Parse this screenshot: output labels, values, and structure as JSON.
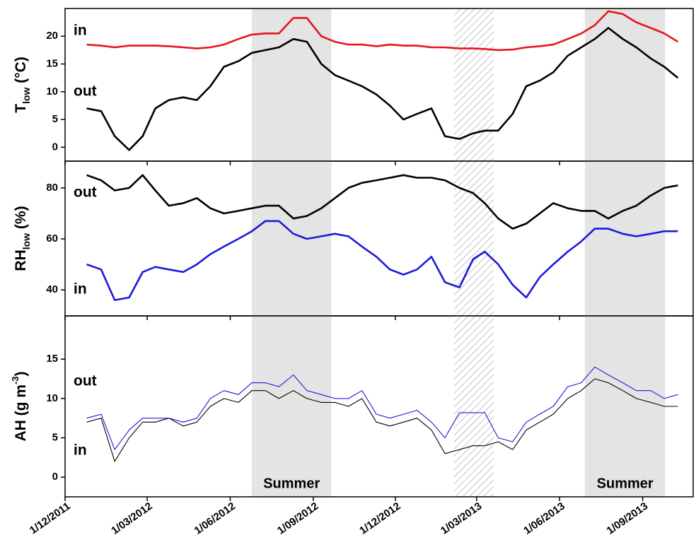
{
  "chart_data": [
    {
      "type": "line",
      "ylabel": [
        {
          "text": "T"
        },
        {
          "text": "low",
          "shift": "sub"
        },
        {
          "text": " (°C)"
        }
      ],
      "x": [
        "25/12/2011",
        "10/01/2012",
        "25/01/2012",
        "10/02/2012",
        "25/02/2012",
        "10/03/2012",
        "25/03/2012",
        "10/04/2012",
        "25/04/2012",
        "10/05/2012",
        "25/05/2012",
        "10/06/2012",
        "25/06/2012",
        "10/07/2012",
        "25/07/2012",
        "10/08/2012",
        "25/08/2012",
        "10/09/2012",
        "25/09/2012",
        "10/10/2012",
        "25/10/2012",
        "10/11/2012",
        "25/11/2012",
        "10/12/2012",
        "25/12/2012",
        "10/01/2013",
        "25/01/2013",
        "10/02/2013",
        "25/02/2013",
        "10/03/2013",
        "25/03/2013",
        "10/04/2013",
        "25/04/2013",
        "10/05/2013",
        "25/05/2013",
        "10/06/2013",
        "25/06/2013",
        "10/07/2013",
        "25/07/2013",
        "10/08/2013",
        "25/08/2013",
        "10/09/2013",
        "25/09/2013",
        "10/10/2013"
      ],
      "xlim": [
        "1/12/2011",
        "27/10/2013"
      ],
      "xticks": [
        "1/12/2011",
        "1/03/2012",
        "1/06/2012",
        "1/09/2012",
        "1/12/2012",
        "1/03/2013",
        "1/06/2013",
        "1/09/2013"
      ],
      "ylim": [
        -2.5,
        25
      ],
      "yticks": [
        0,
        5,
        10,
        15,
        20
      ],
      "periods": [
        {
          "start": "25/06/2012",
          "end": "21/09/2012",
          "style": "shade"
        },
        {
          "start": "4/02/2013",
          "end": "20/03/2013",
          "style": "hatch"
        },
        {
          "start": "29/06/2013",
          "end": "26/09/2013",
          "style": "shade"
        }
      ],
      "series": [
        {
          "name": "in",
          "color": "#e8141c",
          "values": [
            18.5,
            18.3,
            18,
            18.3,
            18.3,
            18.3,
            18.2,
            18,
            17.8,
            18,
            18.5,
            19.5,
            20.3,
            20.5,
            20.5,
            23.3,
            23.3,
            20,
            19,
            18.5,
            18.5,
            18.2,
            18.5,
            18.3,
            18.3,
            18,
            18,
            17.8,
            17.8,
            17.7,
            17.5,
            17.6,
            18,
            18.2,
            18.5,
            19.5,
            20.5,
            22,
            24.5,
            24,
            22.5,
            21.5,
            20.5,
            19
          ]
        },
        {
          "name": "out",
          "color": "#000000",
          "values": [
            7,
            6.5,
            2,
            -0.5,
            2,
            7,
            8.5,
            9,
            8.5,
            11,
            14.5,
            15.5,
            17,
            17.5,
            18,
            19.5,
            19,
            15,
            13,
            12,
            11,
            9.5,
            7.5,
            5,
            6,
            7,
            2,
            1.5,
            2.5,
            3,
            3,
            6,
            11,
            12,
            13.5,
            16.5,
            18,
            19.5,
            21.5,
            19.5,
            18,
            16,
            14.5,
            12.5
          ]
        }
      ]
    },
    {
      "type": "line",
      "ylabel": [
        {
          "text": "RH"
        },
        {
          "text": "low",
          "shift": "sub"
        },
        {
          "text": " (%)"
        }
      ],
      "x": [
        "25/12/2011",
        "10/01/2012",
        "25/01/2012",
        "10/02/2012",
        "25/02/2012",
        "10/03/2012",
        "25/03/2012",
        "10/04/2012",
        "25/04/2012",
        "10/05/2012",
        "25/05/2012",
        "10/06/2012",
        "25/06/2012",
        "10/07/2012",
        "25/07/2012",
        "10/08/2012",
        "25/08/2012",
        "10/09/2012",
        "25/09/2012",
        "10/10/2012",
        "25/10/2012",
        "10/11/2012",
        "25/11/2012",
        "10/12/2012",
        "25/12/2012",
        "10/01/2013",
        "25/01/2013",
        "10/02/2013",
        "25/02/2013",
        "10/03/2013",
        "25/03/2013",
        "10/04/2013",
        "25/04/2013",
        "10/05/2013",
        "25/05/2013",
        "10/06/2013",
        "25/06/2013",
        "10/07/2013",
        "25/07/2013",
        "10/08/2013",
        "25/08/2013",
        "10/09/2013",
        "25/09/2013",
        "10/10/2013"
      ],
      "xlim": [
        "1/12/2011",
        "27/10/2013"
      ],
      "xticks": [
        "1/12/2011",
        "1/03/2012",
        "1/06/2012",
        "1/09/2012",
        "1/12/2012",
        "1/03/2013",
        "1/06/2013",
        "1/09/2013"
      ],
      "ylim": [
        29.8,
        90.5
      ],
      "yticks": [
        40,
        60,
        80
      ],
      "periods": [
        {
          "start": "25/06/2012",
          "end": "21/09/2012",
          "style": "shade"
        },
        {
          "start": "4/02/2013",
          "end": "20/03/2013",
          "style": "hatch"
        },
        {
          "start": "29/06/2013",
          "end": "26/09/2013",
          "style": "shade"
        }
      ],
      "series": [
        {
          "name": "out",
          "color": "#000000",
          "values": [
            85,
            83,
            79,
            80,
            85,
            79,
            73,
            74,
            76,
            72,
            70,
            71,
            72,
            73,
            73,
            68,
            69,
            72,
            76,
            80,
            82,
            83,
            84,
            85,
            84,
            84,
            83,
            80,
            78,
            74,
            68,
            64,
            66,
            70,
            74,
            72,
            71,
            71,
            68,
            71,
            73,
            77,
            80,
            81
          ]
        },
        {
          "name": "in",
          "color": "#1a1adc",
          "values": [
            50,
            48,
            36,
            37,
            47,
            49,
            48,
            47,
            50,
            54,
            57,
            60,
            63,
            67,
            67,
            62,
            60,
            61,
            62,
            61,
            57,
            53,
            48,
            46,
            48,
            53,
            43,
            41,
            52,
            55,
            50,
            42,
            37,
            45,
            50,
            55,
            59,
            64,
            64,
            62,
            61,
            62,
            63,
            63
          ]
        }
      ]
    },
    {
      "type": "line",
      "ylabel": [
        {
          "text": "AH (g m"
        },
        {
          "text": "-3",
          "shift": "sup"
        },
        {
          "text": ")"
        }
      ],
      "x": [
        "25/12/2011",
        "10/01/2012",
        "25/01/2012",
        "10/02/2012",
        "25/02/2012",
        "10/03/2012",
        "25/03/2012",
        "10/04/2012",
        "25/04/2012",
        "10/05/2012",
        "25/05/2012",
        "10/06/2012",
        "25/06/2012",
        "10/07/2012",
        "25/07/2012",
        "10/08/2012",
        "25/08/2012",
        "10/09/2012",
        "25/09/2012",
        "10/10/2012",
        "25/10/2012",
        "10/11/2012",
        "25/11/2012",
        "10/12/2012",
        "25/12/2012",
        "10/01/2013",
        "25/01/2013",
        "10/02/2013",
        "25/02/2013",
        "10/03/2013",
        "25/03/2013",
        "10/04/2013",
        "25/04/2013",
        "10/05/2013",
        "25/05/2013",
        "10/06/2013",
        "25/06/2013",
        "10/07/2013",
        "25/07/2013",
        "10/08/2013",
        "25/08/2013",
        "10/09/2013",
        "25/09/2013",
        "10/10/2013"
      ],
      "xlim": [
        "1/12/2011",
        "27/10/2013"
      ],
      "xticks": [
        "1/12/2011",
        "1/03/2012",
        "1/06/2012",
        "1/09/2012",
        "1/12/2012",
        "1/03/2013",
        "1/06/2013",
        "1/09/2013"
      ],
      "ylim": [
        -2.5,
        20.5
      ],
      "yticks": [
        0,
        5,
        10,
        15
      ],
      "periods": [
        {
          "start": "25/06/2012",
          "end": "21/09/2012",
          "style": "shade",
          "label": "Summer"
        },
        {
          "start": "4/02/2013",
          "end": "20/03/2013",
          "style": "hatch"
        },
        {
          "start": "29/06/2013",
          "end": "26/09/2013",
          "style": "shade",
          "label": "Summer"
        }
      ],
      "series": [
        {
          "name": "out",
          "color": "#000000",
          "values": [
            7,
            7.5,
            2,
            5,
            7,
            7,
            7.5,
            6.5,
            7,
            9,
            10,
            9.5,
            11,
            11,
            10,
            11,
            10,
            9.5,
            9.5,
            9,
            10,
            7,
            6.5,
            7,
            7.5,
            6,
            3,
            3.5,
            4,
            4,
            4.5,
            3.5,
            6,
            7,
            8,
            10,
            11,
            12.5,
            12,
            11,
            10,
            9.5,
            9,
            9
          ]
        },
        {
          "name": "in",
          "color": "#1a1adc",
          "values": [
            7.5,
            8,
            3.5,
            6,
            7.5,
            7.5,
            7.5,
            7,
            7.5,
            10,
            11,
            10.5,
            12,
            12,
            11.5,
            13,
            11,
            10.5,
            10,
            10,
            11,
            8,
            7.5,
            8,
            8.5,
            7,
            5,
            8.2,
            8.2,
            8.2,
            5,
            4.5,
            7,
            8,
            9,
            11.5,
            12,
            14,
            13,
            12,
            11,
            11,
            10,
            10.5
          ]
        }
      ]
    }
  ]
}
